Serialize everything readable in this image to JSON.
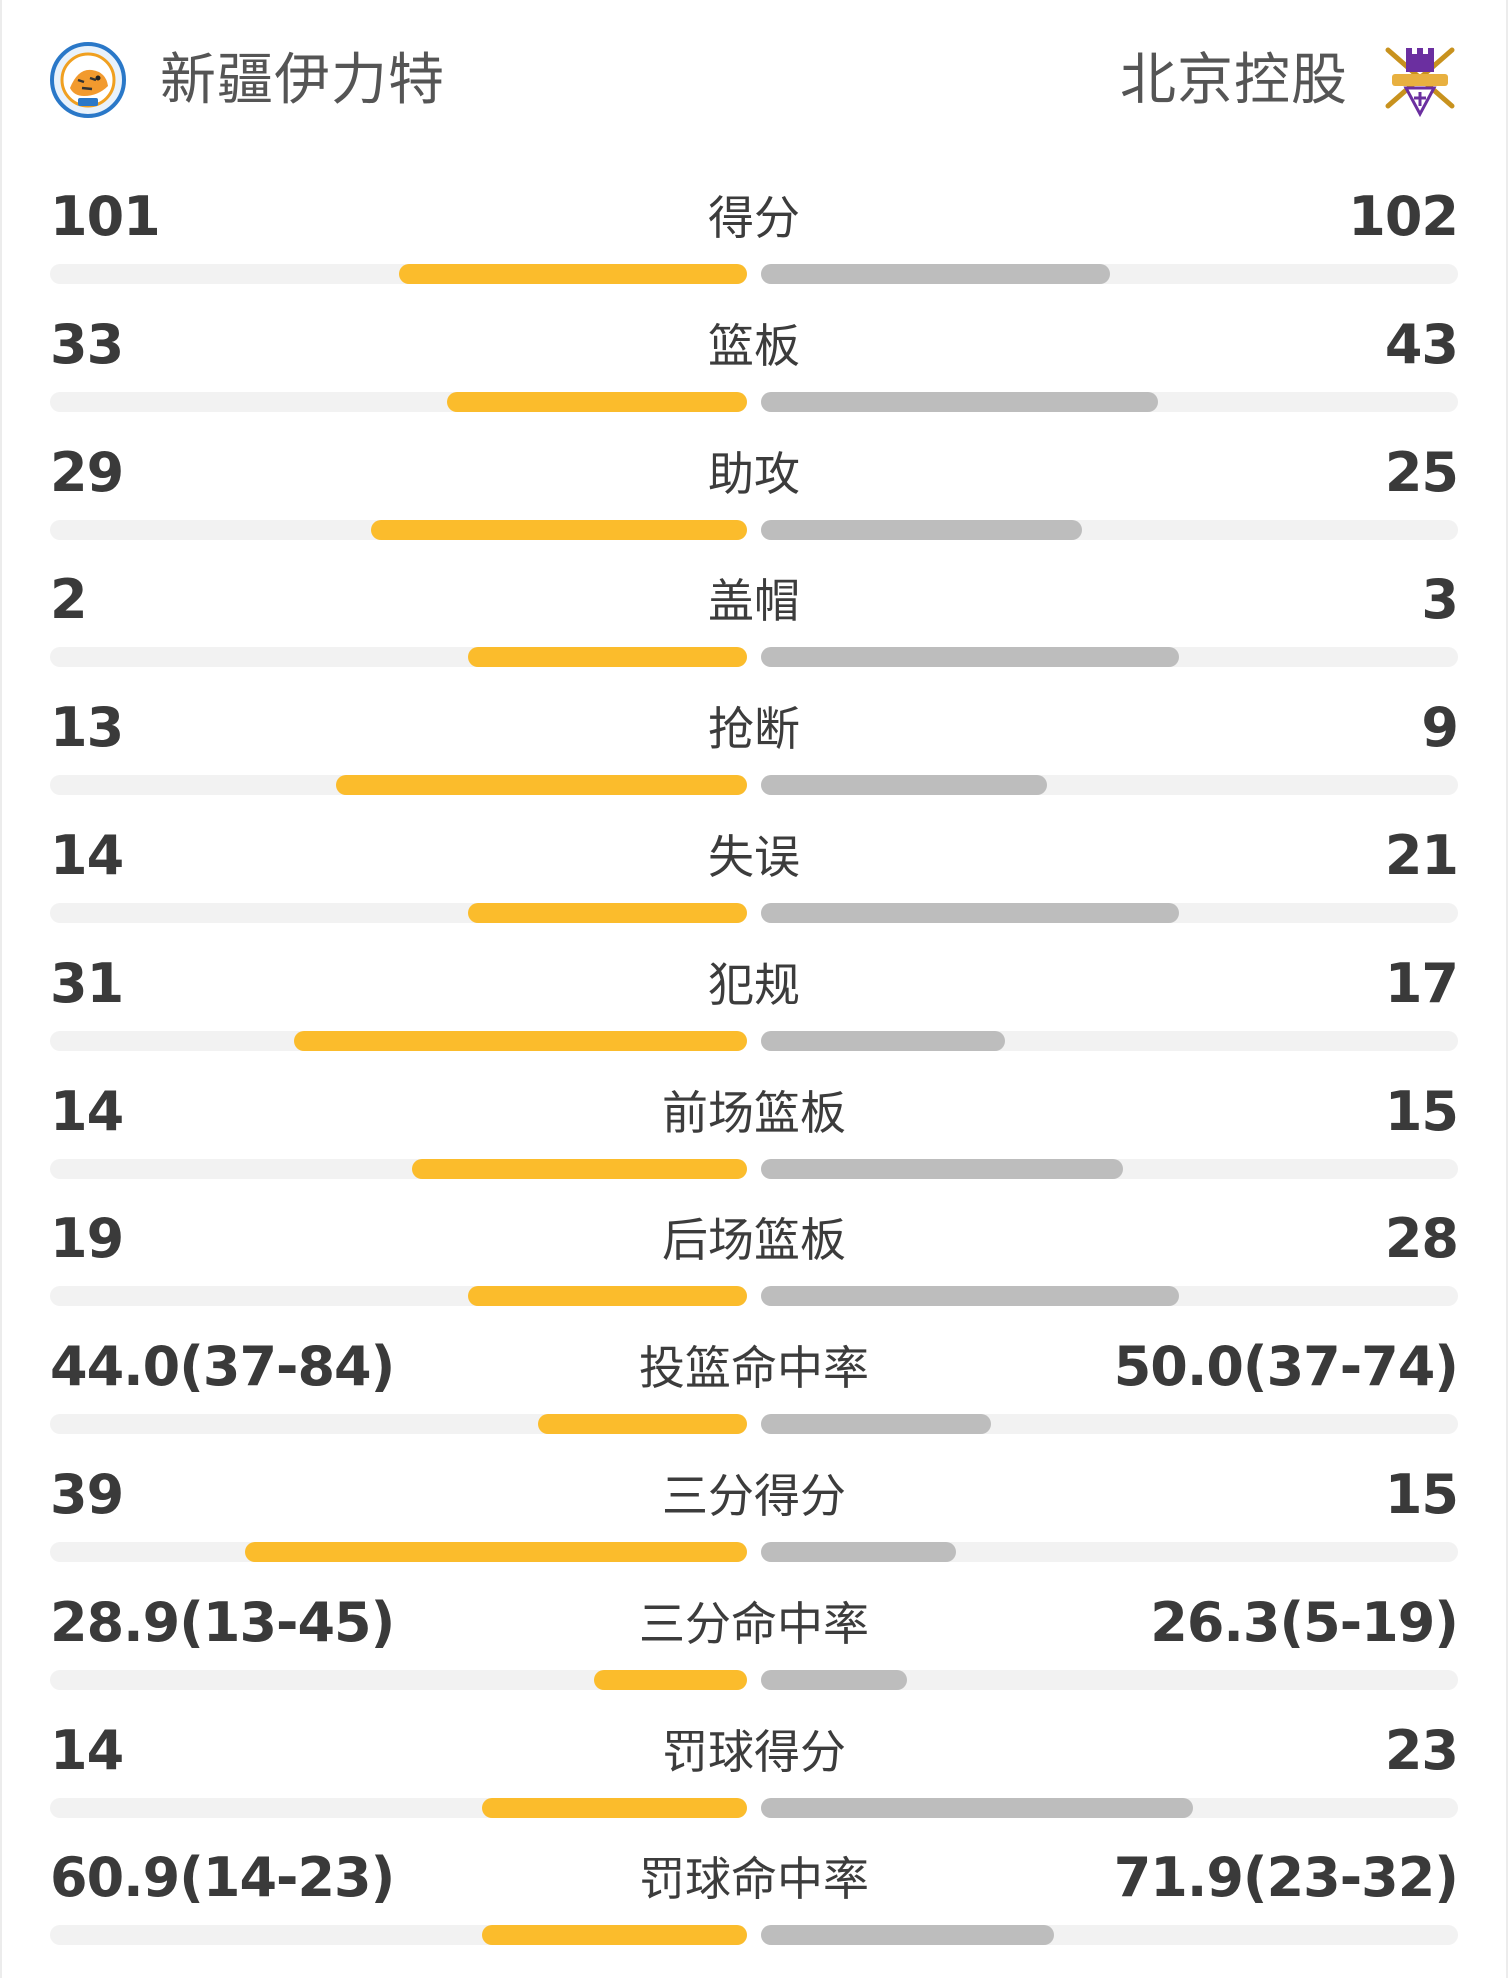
{
  "colors": {
    "home_bar": "#fbbc2c",
    "away_bar": "#bdbdbd",
    "track": "#f2f2f2",
    "text": "#3a3a3a"
  },
  "header": {
    "home_team": "新疆伊力特",
    "away_team": "北京控股",
    "home_logo_icon": "tiger-crest-icon",
    "away_logo_icon": "castle-swords-crest-icon"
  },
  "stats": [
    {
      "label": "得分",
      "home": "101",
      "away": "102",
      "home_ratio": 0.5,
      "away_ratio": 0.5
    },
    {
      "label": "篮板",
      "home": "33",
      "away": "43",
      "home_ratio": 0.43,
      "away_ratio": 0.57
    },
    {
      "label": "助攻",
      "home": "29",
      "away": "25",
      "home_ratio": 0.54,
      "away_ratio": 0.46
    },
    {
      "label": "盖帽",
      "home": "2",
      "away": "3",
      "home_ratio": 0.4,
      "away_ratio": 0.6
    },
    {
      "label": "抢断",
      "home": "13",
      "away": "9",
      "home_ratio": 0.59,
      "away_ratio": 0.41
    },
    {
      "label": "失误",
      "home": "14",
      "away": "21",
      "home_ratio": 0.4,
      "away_ratio": 0.6
    },
    {
      "label": "犯规",
      "home": "31",
      "away": "17",
      "home_ratio": 0.65,
      "away_ratio": 0.35
    },
    {
      "label": "前场篮板",
      "home": "14",
      "away": "15",
      "home_ratio": 0.48,
      "away_ratio": 0.52
    },
    {
      "label": "后场篮板",
      "home": "19",
      "away": "28",
      "home_ratio": 0.4,
      "away_ratio": 0.6
    },
    {
      "label": "投篮命中率",
      "home": "44.0(37-84)",
      "away": "50.0(37-74)",
      "home_ratio": 0.3,
      "away_ratio": 0.33
    },
    {
      "label": "三分得分",
      "home": "39",
      "away": "15",
      "home_ratio": 0.72,
      "away_ratio": 0.28
    },
    {
      "label": "三分命中率",
      "home": "28.9(13-45)",
      "away": "26.3(5-19)",
      "home_ratio": 0.22,
      "away_ratio": 0.21
    },
    {
      "label": "罚球得分",
      "home": "14",
      "away": "23",
      "home_ratio": 0.38,
      "away_ratio": 0.62
    },
    {
      "label": "罚球命中率",
      "home": "60.9(14-23)",
      "away": "71.9(23-32)",
      "home_ratio": 0.38,
      "away_ratio": 0.42
    }
  ]
}
